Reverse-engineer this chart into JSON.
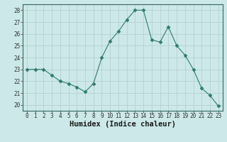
{
  "xlabel": "Humidex (Indice chaleur)",
  "x": [
    0,
    1,
    2,
    3,
    4,
    5,
    6,
    7,
    8,
    9,
    10,
    11,
    12,
    13,
    14,
    15,
    16,
    17,
    18,
    19,
    20,
    21,
    22,
    23
  ],
  "y": [
    23,
    23,
    23,
    22.5,
    22,
    21.8,
    21.5,
    21.1,
    21.8,
    24,
    25.4,
    26.2,
    27.2,
    28,
    28,
    25.5,
    25.3,
    26.6,
    25,
    24.2,
    23,
    21.4,
    20.8,
    19.9
  ],
  "line_color": "#2e7d6e",
  "marker": "D",
  "marker_size": 2.5,
  "bg_color": "#cce8e8",
  "grid_color": "#b0cccc",
  "ylim": [
    19.5,
    28.5
  ],
  "yticks": [
    20,
    21,
    22,
    23,
    24,
    25,
    26,
    27,
    28
  ],
  "xlim": [
    -0.5,
    23.5
  ],
  "xticks": [
    0,
    1,
    2,
    3,
    4,
    5,
    6,
    7,
    8,
    9,
    10,
    11,
    12,
    13,
    14,
    15,
    16,
    17,
    18,
    19,
    20,
    21,
    22,
    23
  ],
  "xlabel_fontsize": 7.5,
  "tick_fontsize": 5.5,
  "xlabel_fontweight": "bold"
}
